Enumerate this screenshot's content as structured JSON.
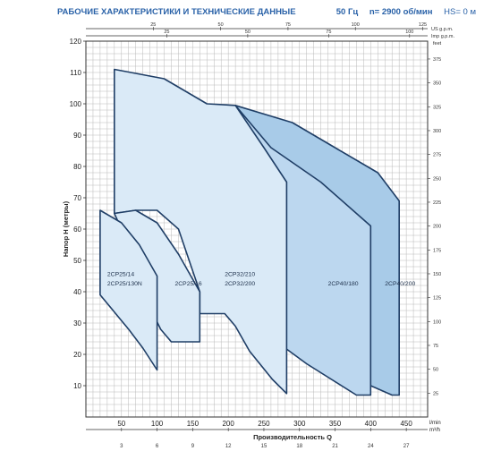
{
  "header": {
    "title": "РАБОЧИЕ ХАРАКТЕРИСТИКИ И ТЕХНИЧЕСКИЕ ДАННЫЕ",
    "freq": "50 Гц",
    "speed": "n= 2900 об/мин",
    "hs": "HS= 0 м"
  },
  "colors": {
    "border": "#1f3e66",
    "grid": "#b9b9b9",
    "fill_light": "#daeaf7",
    "fill_mid": "#c3dcf1",
    "fill_dark": "#a8cbe8",
    "header_text": "#2a62a8"
  },
  "chart_data": {
    "type": "area",
    "title": "",
    "xlabel": "Производительность Q",
    "ylabel": "Напор H (метры)",
    "xunit": "l/min",
    "xunit2": "m³/h",
    "right_unit": "feet",
    "xlim": [
      0,
      480
    ],
    "ylim": [
      0,
      120
    ],
    "x_ticks": [
      "50",
      "100",
      "150",
      "200",
      "250",
      "300",
      "350",
      "400",
      "450"
    ],
    "y_ticks": [
      "10",
      "20",
      "30",
      "40",
      "50",
      "60",
      "70",
      "80",
      "90",
      "100",
      "110",
      "120"
    ],
    "top_axes": [
      {
        "unit": "US g.p.m.",
        "ticks": [
          "25",
          "50",
          "75",
          "100",
          "125"
        ],
        "factor": 3.785
      },
      {
        "unit": "Imp g.p.m.",
        "ticks": [
          "25",
          "50",
          "75",
          "100"
        ],
        "factor": 4.546
      }
    ],
    "bottom_axis_m3h": {
      "ticks": [
        "3",
        "6",
        "9",
        "12",
        "15",
        "18",
        "21",
        "24",
        "27"
      ],
      "factor": 16.667
    },
    "right_axis_feet": {
      "ticks": [
        "25",
        "50",
        "75",
        "100",
        "125",
        "150",
        "175",
        "200",
        "225",
        "250",
        "275",
        "300",
        "325",
        "350",
        "375"
      ],
      "factor": 0.3048
    },
    "series": [
      {
        "name": "2CP40/200",
        "fill": "#a8cbe8",
        "polygon": [
          [
            210,
            99.5
          ],
          [
            290,
            94
          ],
          [
            350,
            86
          ],
          [
            410,
            78
          ],
          [
            440,
            69
          ],
          [
            440,
            7
          ],
          [
            430,
            7
          ],
          [
            340,
            16
          ],
          [
            260,
            28
          ],
          [
            210,
            36
          ]
        ]
      },
      {
        "name": "2CP40/180",
        "fill": "#bcd7ef",
        "polygon": [
          [
            210,
            99.5
          ],
          [
            260,
            86
          ],
          [
            330,
            75
          ],
          [
            400,
            61
          ],
          [
            400,
            7
          ],
          [
            380,
            7
          ],
          [
            310,
            17
          ],
          [
            250,
            27
          ]
        ]
      },
      {
        "name": "2CP32/210\n2CP32/200",
        "fill": "#daeaf7",
        "polygon": [
          [
            40,
            111
          ],
          [
            110,
            108
          ],
          [
            170,
            100
          ],
          [
            210,
            99.5
          ],
          [
            250,
            86
          ],
          [
            282,
            75
          ],
          [
            282,
            7.5
          ],
          [
            262,
            12
          ],
          [
            230,
            21
          ],
          [
            210,
            29
          ],
          [
            195,
            33
          ],
          [
            160,
            33
          ],
          [
            160,
            40
          ],
          [
            130,
            60
          ],
          [
            100,
            66
          ],
          [
            70,
            66
          ],
          [
            40,
            65
          ]
        ]
      },
      {
        "name": "2CP25/16",
        "fill": "#daeaf7",
        "polygon": [
          [
            40,
            65
          ],
          [
            70,
            66
          ],
          [
            100,
            62
          ],
          [
            130,
            52
          ],
          [
            160,
            40
          ],
          [
            160,
            24
          ],
          [
            120,
            24
          ],
          [
            105,
            28
          ],
          [
            90,
            35
          ],
          [
            80,
            45
          ],
          [
            60,
            55
          ]
        ]
      },
      {
        "name": "2CP25/14\n2CP25/130N",
        "fill": "#daeaf7",
        "polygon": [
          [
            20,
            66
          ],
          [
            50,
            62
          ],
          [
            75,
            55
          ],
          [
            100,
            45
          ],
          [
            100,
            15
          ],
          [
            80,
            22
          ],
          [
            60,
            28
          ],
          [
            20,
            39
          ]
        ]
      }
    ],
    "labels": [
      {
        "text": "2CP25/14",
        "x": 30,
        "y": 45
      },
      {
        "text": "2CP25/130N",
        "x": 30,
        "y": 42
      },
      {
        "text": "2CP25/16",
        "x": 125,
        "y": 42
      },
      {
        "text": "2CP32/210",
        "x": 195,
        "y": 45
      },
      {
        "text": "2CP32/200",
        "x": 195,
        "y": 42
      },
      {
        "text": "2CP40/180",
        "x": 340,
        "y": 42
      },
      {
        "text": "2CP40/200",
        "x": 420,
        "y": 42
      }
    ]
  }
}
